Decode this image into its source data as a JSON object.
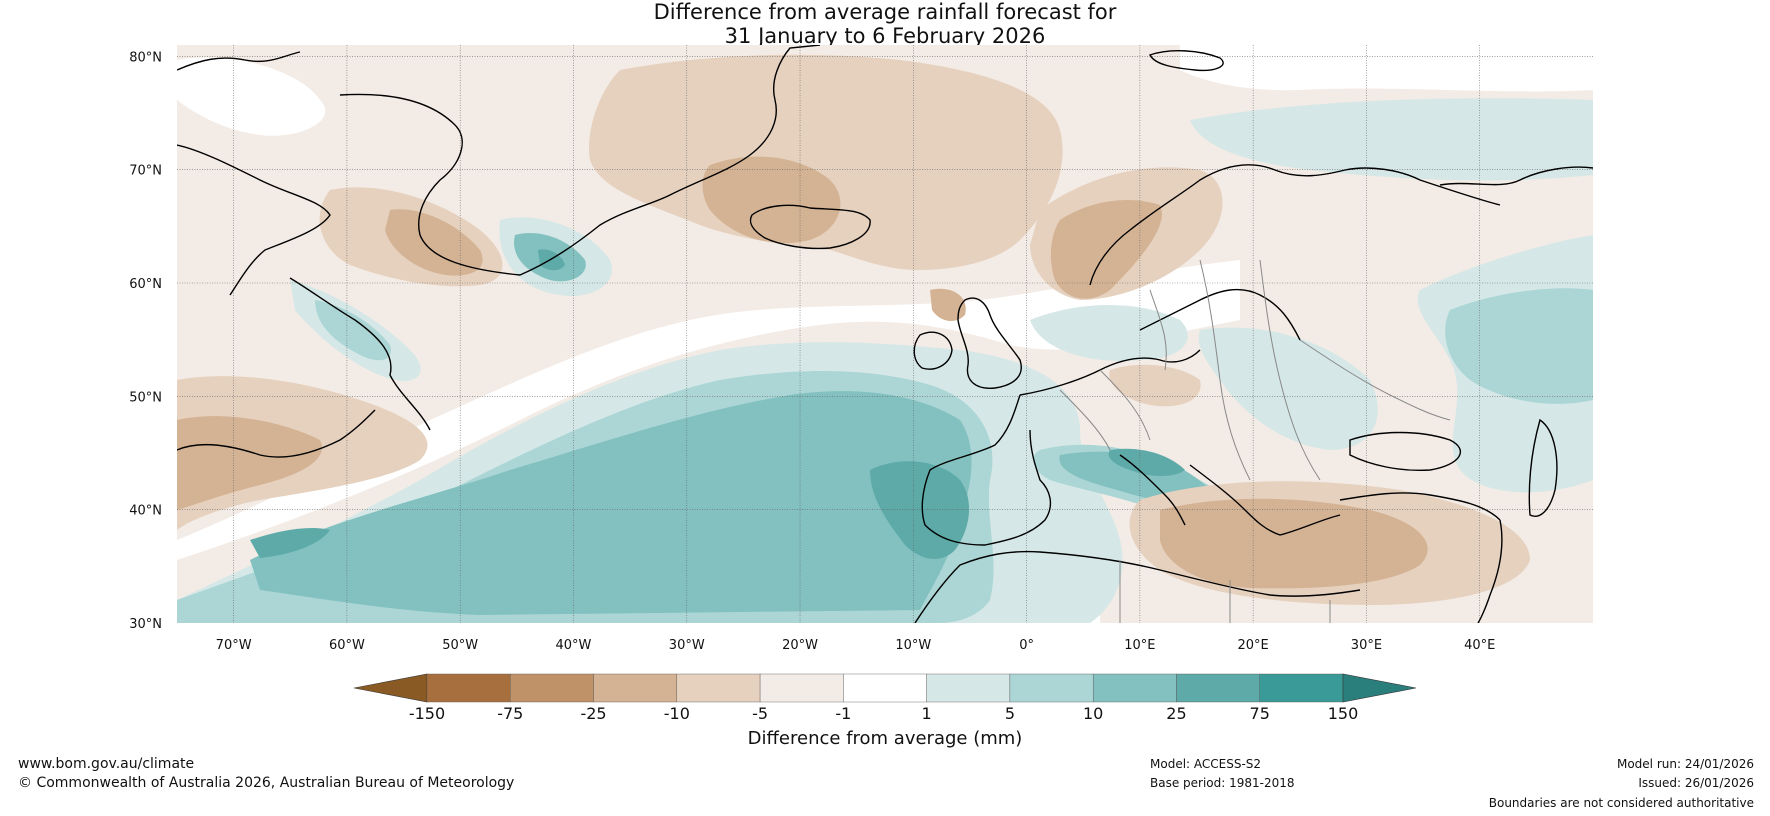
{
  "title": {
    "line1": "Difference from average rainfall forecast for",
    "line2": "31 January to 6 February 2026"
  },
  "map": {
    "lat_labels": [
      "80°N",
      "70°N",
      "60°N",
      "50°N",
      "40°N",
      "30°N"
    ],
    "lon_labels": [
      "70°W",
      "60°W",
      "50°W",
      "40°W",
      "30°W",
      "20°W",
      "10°W",
      "0°",
      "10°E",
      "20°E",
      "30°E",
      "40°E"
    ],
    "extent": {
      "lon_min": -75,
      "lon_max": 50,
      "lat_min": 30,
      "lat_max": 81
    }
  },
  "colorbar": {
    "ticks": [
      "-150",
      "-75",
      "-25",
      "-10",
      "-5",
      "-1",
      "1",
      "5",
      "10",
      "25",
      "75",
      "150"
    ],
    "colors": [
      "#8a5a25",
      "#a86f3e",
      "#c09268",
      "#d4b394",
      "#e6d1bf",
      "#f3ebe5",
      "#ffffff",
      "#d5e8e7",
      "#abd6d5",
      "#82c1c0",
      "#5daaa9",
      "#3a9a98",
      "#2a7f7d"
    ],
    "title": "Difference from average (mm)"
  },
  "footer": {
    "website": "www.bom.gov.au/climate",
    "copyright": "© Commonwealth of Australia 2026, Australian Bureau of Meteorology",
    "model": "Model: ACCESS-S2",
    "base_period": "Base period: 1981-2018",
    "model_run": "Model run: 24/01/2026",
    "issued": "Issued: 26/01/2026",
    "disclaimer": "Boundaries are not considered authoritative"
  }
}
